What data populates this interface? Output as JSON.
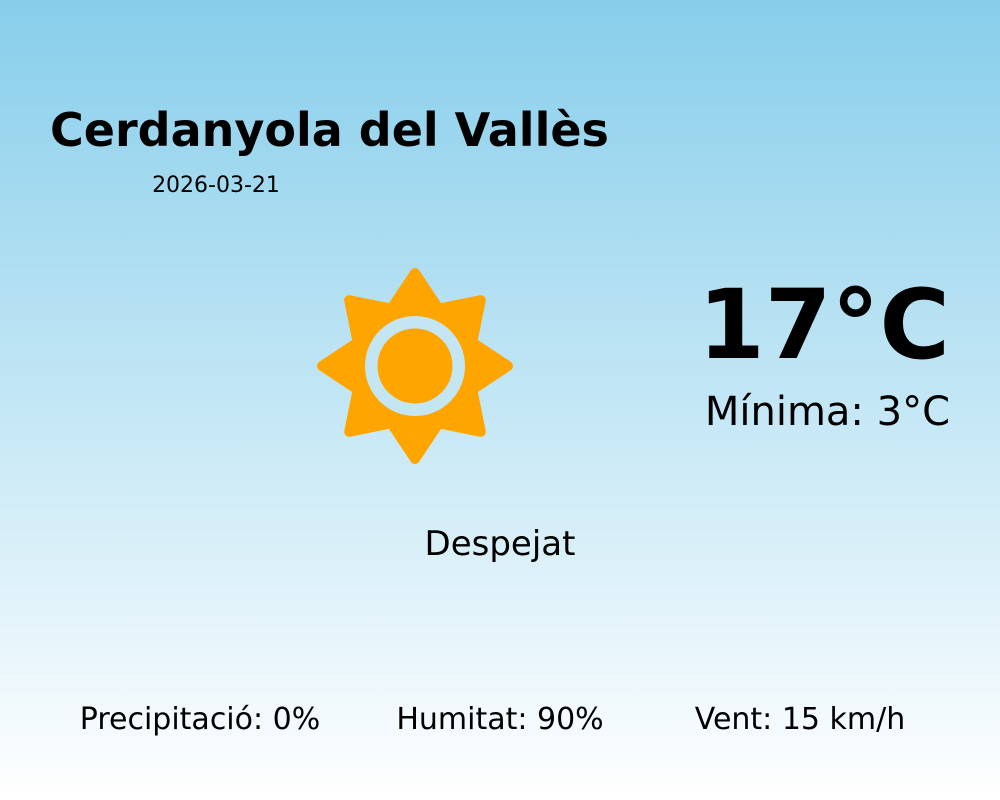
{
  "location": "Cerdanyola del Vallès",
  "date": "2026-03-21",
  "temperature": "17°C",
  "minimum": "Mínima: 3°C",
  "condition": "Despejat",
  "condition_icon": "sun-icon",
  "stats": {
    "precipitation": "Precipitació: 0%",
    "humidity": "Humitat: 90%",
    "wind": "Vent: 15 km/h"
  },
  "colors": {
    "sun": "#ffa500",
    "sky_top": "#87ceeb",
    "sky_bottom": "#ffffff"
  }
}
